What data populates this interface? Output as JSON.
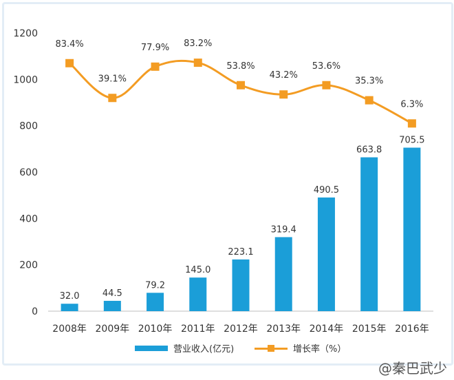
{
  "chart_data": {
    "type": "bar+line",
    "categories": [
      "2008年",
      "2009年",
      "2010年",
      "2011年",
      "2012年",
      "2013年",
      "2014年",
      "2015年",
      "2016年"
    ],
    "series": [
      {
        "name": "营业收入(亿元)",
        "type": "bar",
        "color": "#1b9ed8",
        "values": [
          32.0,
          44.5,
          79.2,
          145.0,
          223.1,
          319.4,
          490.5,
          663.8,
          705.5
        ],
        "labels": [
          "32.0",
          "44.5",
          "79.2",
          "145.0",
          "223.1",
          "319.4",
          "490.5",
          "663.8",
          "705.5"
        ]
      },
      {
        "name": "增长率（%）",
        "type": "line",
        "color": "#f39c23",
        "values": [
          83.4,
          39.1,
          77.9,
          83.2,
          53.8,
          43.2,
          53.6,
          35.3,
          6.3
        ],
        "labels": [
          "83.4%",
          "39.1%",
          "77.9%",
          "83.2%",
          "53.8%",
          "43.2%",
          "53.6%",
          "35.3%",
          "6.3%"
        ],
        "plotted_on_left_axis": [
          1070,
          920,
          1055,
          1072,
          975,
          935,
          975,
          910,
          810
        ]
      }
    ],
    "yaxis": {
      "min": 0,
      "max": 1200,
      "ticks": [
        0,
        200,
        400,
        600,
        800,
        1000,
        1200
      ]
    },
    "grid": false,
    "legend": "bottom"
  },
  "watermark": "@秦巴武少"
}
